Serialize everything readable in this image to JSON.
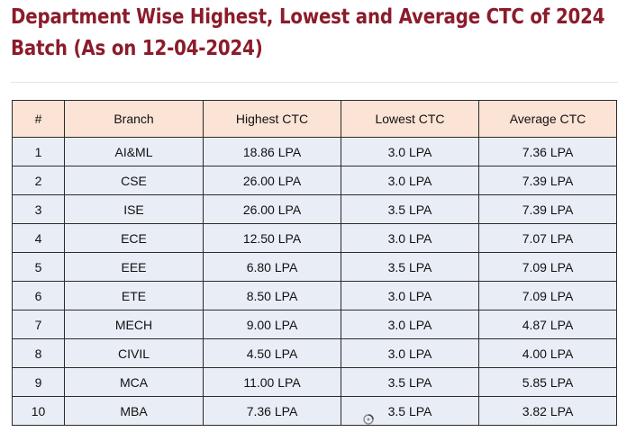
{
  "title": "Department Wise Highest, Lowest and Average CTC of 2024 Batch (As on 12-04-2024)",
  "table": {
    "headers": [
      "#",
      "Branch",
      "Highest CTC",
      "Lowest CTC",
      "Average CTC"
    ],
    "rows": [
      [
        "1",
        "AI&ML",
        "18.86 LPA",
        "3.0 LPA",
        "7.36 LPA"
      ],
      [
        "2",
        "CSE",
        "26.00 LPA",
        "3.0 LPA",
        "7.39 LPA"
      ],
      [
        "3",
        "ISE",
        "26.00 LPA",
        "3.5 LPA",
        "7.39 LPA"
      ],
      [
        "4",
        "ECE",
        "12.50 LPA",
        "3.0 LPA",
        "7.07 LPA"
      ],
      [
        "5",
        "EEE",
        "6.80 LPA",
        "3.5 LPA",
        "7.09 LPA"
      ],
      [
        "6",
        "ETE",
        "8.50 LPA",
        "3.0 LPA",
        "7.09 LPA"
      ],
      [
        "7",
        "MECH",
        "9.00 LPA",
        "3.0 LPA",
        "4.87 LPA"
      ],
      [
        "8",
        "CIVIL",
        "4.50 LPA",
        "3.0 LPA",
        "4.00 LPA"
      ],
      [
        "9",
        "MCA",
        "11.00 LPA",
        "3.5 LPA",
        "5.85 LPA"
      ],
      [
        "10",
        "MBA",
        "7.36 LPA",
        "3.5 LPA",
        "3.82 LPA"
      ]
    ]
  },
  "colors": {
    "title": "#8b1c2b",
    "header_bg": "#fbe3d5",
    "row_bg": "#e8edf6",
    "border": "#2b2b2b"
  },
  "icons": {
    "cursor": "busy-cursor-icon"
  }
}
